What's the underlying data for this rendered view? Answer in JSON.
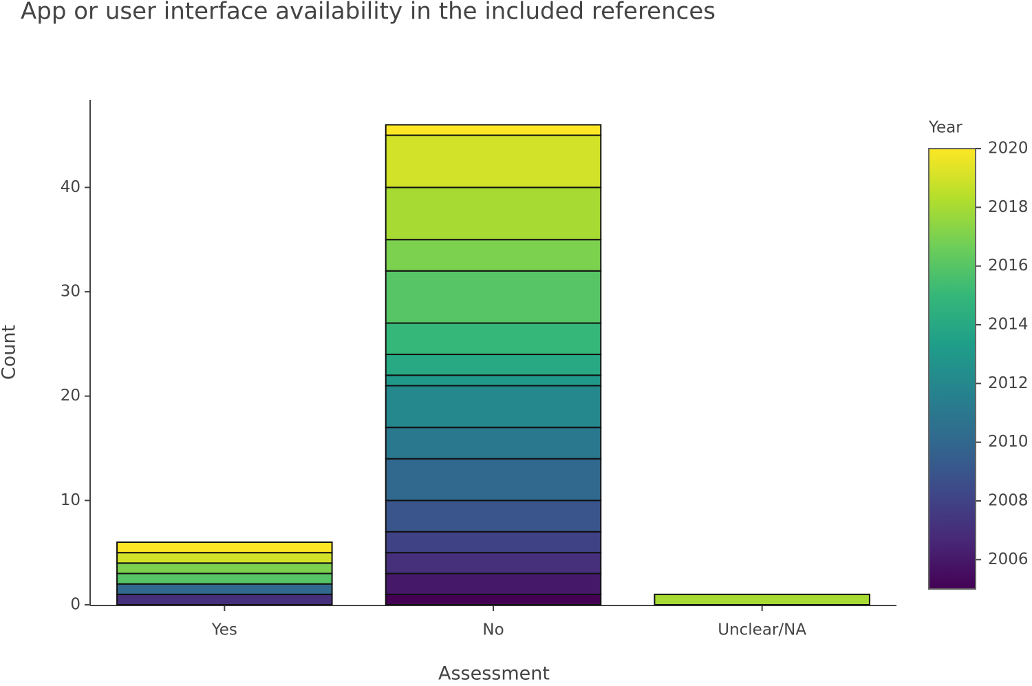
{
  "chart_data": {
    "type": "stacked-bar",
    "title": "App or user interface availability in the included references",
    "x_label": "Assessment",
    "y_label": "Count",
    "categories": [
      "Yes",
      "No",
      "Unclear/NA"
    ],
    "stacks": [
      {
        "years": [
          2007,
          2010,
          2016,
          2017,
          2019,
          2020
        ],
        "values": [
          1,
          1,
          1,
          1,
          1,
          1
        ]
      },
      {
        "years": [
          2005,
          2006,
          2007,
          2008,
          2009,
          2010,
          2011,
          2012,
          2013,
          2014,
          2015,
          2016,
          2017,
          2018,
          2019,
          2020
        ],
        "values": [
          1,
          2,
          2,
          2,
          3,
          4,
          3,
          4,
          1,
          2,
          3,
          5,
          3,
          5,
          5,
          1
        ]
      },
      {
        "years": [
          2018
        ],
        "values": [
          1
        ]
      }
    ],
    "ylim": [
      0,
      48.4
    ],
    "yticks": [
      0,
      10,
      20,
      30,
      40
    ],
    "colorbar": {
      "title": "Year",
      "clim": [
        2005,
        2020
      ],
      "ticks": [
        2006,
        2008,
        2010,
        2012,
        2014,
        2016,
        2018,
        2020
      ],
      "colorscale": [
        "#440154",
        "#482878",
        "#3e4989",
        "#31688e",
        "#26828e",
        "#1f9e89",
        "#35b779",
        "#6ece58",
        "#b5de2b",
        "#fde725"
      ]
    }
  }
}
